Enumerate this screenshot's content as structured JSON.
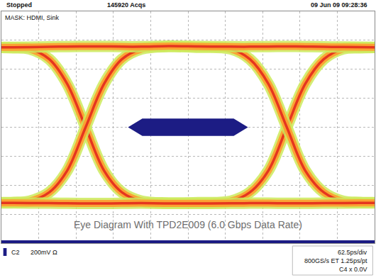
{
  "chart_data": {
    "type": "line",
    "title": "Eye Diagram With TPD2E009 (6.0 Gbps Data Rate)",
    "annotations": {
      "status": "Stopped",
      "acquisitions": "145920 Acqs",
      "timestamp": "09 Jun 09 09:28:36",
      "mask_label": "MASK: HDMI, Sink",
      "channel": "C2",
      "vertical_scale": "200mV Ω",
      "timebase": "62.5ps/div",
      "sampling": "800GS/s ET 1.25ps/pt",
      "trigger_channel": "C4",
      "trigger_level": "x 0.0V"
    },
    "x": [
      0,
      20,
      47,
      80,
      110,
      141,
      172,
      202,
      235,
      280,
      330,
      384,
      416,
      447,
      478,
      509,
      540,
      572,
      600,
      625
    ],
    "series": [
      {
        "values": [
          550,
          548,
          540,
          470,
          300,
          0,
          -300,
          -450,
          -510,
          -522,
          -520,
          -510,
          -450,
          -300,
          0,
          300,
          470,
          540,
          548,
          550
        ]
      },
      {
        "values": [
          -520,
          -518,
          -510,
          -450,
          -300,
          0,
          300,
          470,
          540,
          556,
          552,
          540,
          470,
          300,
          0,
          -300,
          -450,
          -510,
          -518,
          -520
        ]
      },
      {
        "values": [
          552,
          552,
          553,
          555,
          557,
          558,
          558,
          556,
          556,
          560,
          558,
          556,
          556,
          557,
          558,
          557,
          555,
          554,
          553,
          552
        ]
      },
      {
        "values": [
          -522,
          -522,
          -523,
          -524,
          -525,
          -526,
          -526,
          -525,
          -524,
          -526,
          -526,
          -525,
          -524,
          -524,
          -525,
          -525,
          -524,
          -523,
          -522,
          -522
        ]
      }
    ],
    "mask": [
      {
        "x": [
          212,
          236,
          389,
          413,
          389,
          236,
          212
        ],
        "y": [
          0,
          60,
          60,
          0,
          -60,
          -60,
          0
        ]
      },
      {
        "x": [
          0,
          625,
          625,
          0,
          0
        ],
        "y": [
          -780,
          -780,
          -800,
          -800,
          -780
        ]
      }
    ],
    "xlim": [
      0,
      625
    ],
    "xticks": [
      0,
      62.5,
      125,
      187.5,
      250,
      312.5,
      375,
      437.5,
      500,
      562.5,
      625
    ],
    "ylim": [
      -800,
      800
    ],
    "yticks": [
      -800,
      -600,
      -400,
      -200,
      0,
      200,
      400,
      600,
      800
    ],
    "grid": true,
    "tick_labels": false
  }
}
